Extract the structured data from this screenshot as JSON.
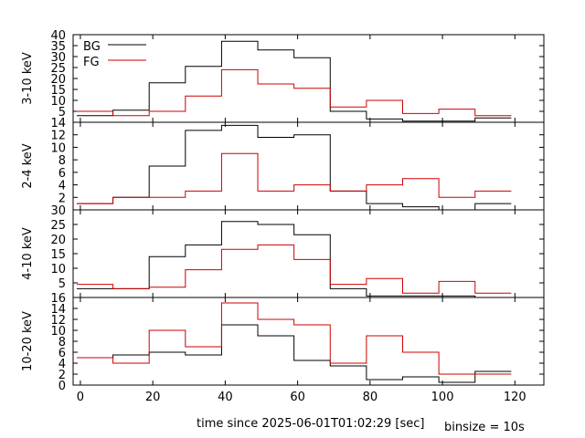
{
  "chart_data": [
    {
      "type": "line",
      "step": true,
      "ylabel": "3-10 keV",
      "ylim": [
        0,
        40
      ],
      "yticks": [
        0,
        5,
        10,
        15,
        20,
        25,
        30,
        35,
        40
      ],
      "ytick_labels": [
        "",
        "5",
        "10",
        "15",
        "20",
        "25",
        "30",
        "35",
        "40"
      ],
      "series": [
        {
          "name": "BG",
          "color": "#000000",
          "values": [
            3,
            5.5,
            18,
            25.5,
            37,
            33,
            29.5,
            5,
            1.5,
            0.5,
            0.5,
            2
          ]
        },
        {
          "name": "FG",
          "color": "#cc0000",
          "values": [
            5,
            3,
            5,
            12,
            24,
            17.5,
            15.5,
            7,
            10,
            4,
            6,
            3
          ]
        }
      ]
    },
    {
      "type": "line",
      "step": true,
      "ylabel": "2-4 keV",
      "ylim": [
        0,
        14
      ],
      "yticks": [
        0,
        2,
        4,
        6,
        8,
        10,
        12,
        14
      ],
      "ytick_labels": [
        "",
        "2",
        "4",
        "6",
        "8",
        "10",
        "12",
        "14"
      ],
      "series": [
        {
          "name": "BG",
          "color": "#000000",
          "values": [
            1,
            2,
            7,
            12.7,
            13.5,
            11.6,
            12,
            3,
            1,
            0.5,
            0,
            1
          ]
        },
        {
          "name": "FG",
          "color": "#cc0000",
          "values": [
            1,
            2,
            2,
            3,
            9,
            3,
            4,
            3,
            4,
            5,
            2,
            3
          ]
        }
      ]
    },
    {
      "type": "line",
      "step": true,
      "ylabel": "4-10 keV",
      "ylim": [
        0,
        30
      ],
      "yticks": [
        0,
        5,
        10,
        15,
        20,
        25,
        30
      ],
      "ytick_labels": [
        "",
        "5",
        "10",
        "15",
        "20",
        "25",
        "30"
      ],
      "series": [
        {
          "name": "BG",
          "color": "#000000",
          "values": [
            3,
            3,
            14,
            18,
            26,
            25,
            21.5,
            3,
            0.5,
            0.5,
            0.5,
            0
          ]
        },
        {
          "name": "FG",
          "color": "#cc0000",
          "values": [
            4.5,
            3,
            3.5,
            9.5,
            16.5,
            18,
            13,
            4.5,
            6.5,
            1.5,
            5.5,
            1.5
          ]
        }
      ]
    },
    {
      "type": "line",
      "step": true,
      "ylabel": "10-20 keV",
      "ylim": [
        0,
        16
      ],
      "yticks": [
        0,
        2,
        4,
        6,
        8,
        10,
        12,
        14,
        16
      ],
      "ytick_labels": [
        "0",
        "2",
        "4",
        "6",
        "8",
        "10",
        "12",
        "14",
        "16"
      ],
      "series": [
        {
          "name": "BG",
          "color": "#000000",
          "values": [
            5,
            5.5,
            6,
            5.5,
            11,
            9,
            4.5,
            3.5,
            1,
            1.5,
            0.5,
            2.5
          ]
        },
        {
          "name": "FG",
          "color": "#cc0000",
          "values": [
            5,
            4,
            10,
            7,
            15,
            12,
            11,
            4,
            9,
            6,
            2,
            2
          ]
        }
      ]
    }
  ],
  "x": {
    "bin_edges": [
      -1,
      9,
      19,
      29,
      39,
      49,
      59,
      69,
      79,
      89,
      99,
      109,
      119
    ],
    "xlim": [
      -2,
      128
    ],
    "ticks": [
      0,
      20,
      40,
      60,
      80,
      100,
      120
    ],
    "tick_labels": [
      "0",
      "20",
      "40",
      "60",
      "80",
      "100",
      "120"
    ],
    "label": "time since 2025-06-01T01:02:29 [sec]"
  },
  "legend": {
    "position": "top-left",
    "entries": [
      {
        "name": "BG",
        "color": "#000000"
      },
      {
        "name": "FG",
        "color": "#cc0000"
      }
    ]
  },
  "footer": {
    "binsize_text": "binsize = 10s"
  }
}
